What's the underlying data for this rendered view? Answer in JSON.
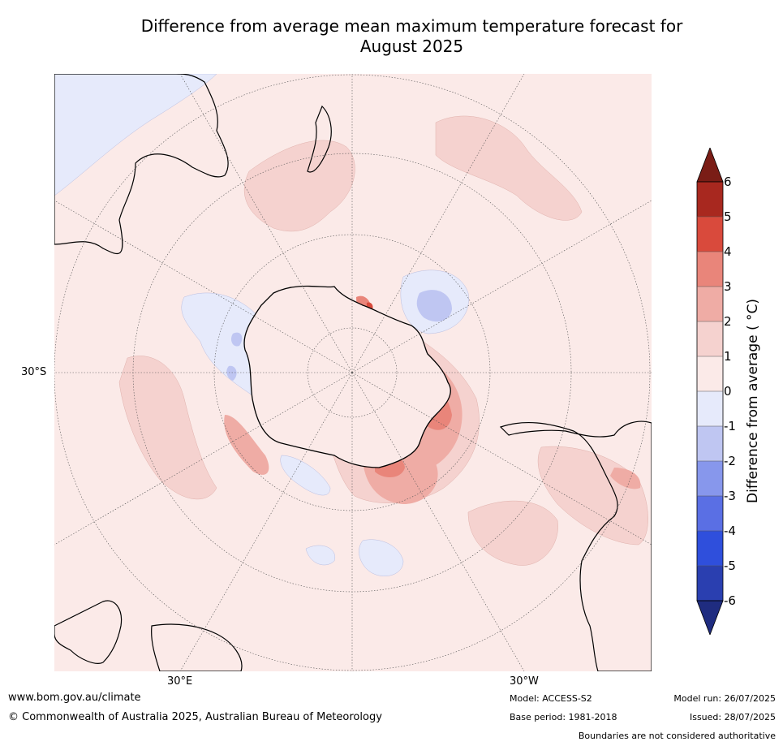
{
  "title_line1": "Difference from average mean maximum temperature forecast for",
  "title_line2": "August 2025",
  "map": {
    "projection": "south-polar-stereographic",
    "lat_labels": [
      "30°S"
    ],
    "lon_labels": [
      "30°E",
      "30°W"
    ]
  },
  "colorbar": {
    "label": "Difference from average ( °C)",
    "ticks": [
      "6",
      "5",
      "4",
      "3",
      "2",
      "1",
      "0",
      "-1",
      "-2",
      "-3",
      "-4",
      "-5",
      "-6"
    ],
    "colors": {
      "above_6": "#7a1d16",
      "5_6": "#a8281f",
      "4_5": "#d94a3c",
      "3_4": "#e9857a",
      "2_3": "#efaca5",
      "1_2": "#f5d2cf",
      "0_1": "#fbeae8",
      "-1_0": "#e6eafb",
      "-2_-1": "#bfc6f2",
      "-3_-2": "#8797ec",
      "-4_-3": "#5a6fe4",
      "-5_-4": "#2f4fdc",
      "-6_-5": "#2a3fb0",
      "below_-6": "#1f2c80"
    }
  },
  "footer": {
    "website": "www.bom.gov.au/climate",
    "copyright": "© Commonwealth of Australia 2025, Australian Bureau of Meteorology",
    "model": "Model: ACCESS-S2",
    "base_period": "Base period: 1981-2018",
    "model_run": "Model run: 26/07/2025",
    "issued": "Issued: 28/07/2025",
    "disclaimer": "Boundaries are not considered authoritative"
  }
}
